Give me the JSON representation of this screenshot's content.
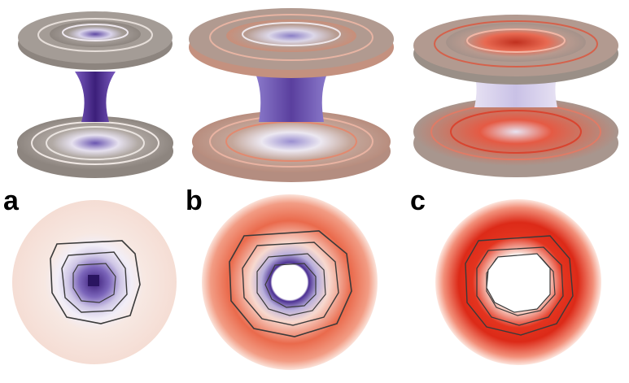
{
  "figure": {
    "panels": [
      {
        "label": "a",
        "colors": {
          "inner": "#4a2a8a",
          "mid": "#9b8ccc",
          "outer": "#f6e6e0",
          "rim": "#9a8f87"
        }
      },
      {
        "label": "b",
        "colors": {
          "inner": "#5a3f9e",
          "mid": "#f0a48a",
          "outer": "#e2553a",
          "rim": "#9a8f87"
        }
      },
      {
        "label": "c",
        "colors": {
          "inner": "#ffffff",
          "mid": "#d7301f",
          "outer": "#f7d2c6",
          "rim": "#9a8f87"
        }
      }
    ],
    "colors": {
      "contour": "#3a3a3a",
      "disc_gray": "#8d857f",
      "disc_light": "#ded5cf",
      "label": "#000000"
    }
  }
}
